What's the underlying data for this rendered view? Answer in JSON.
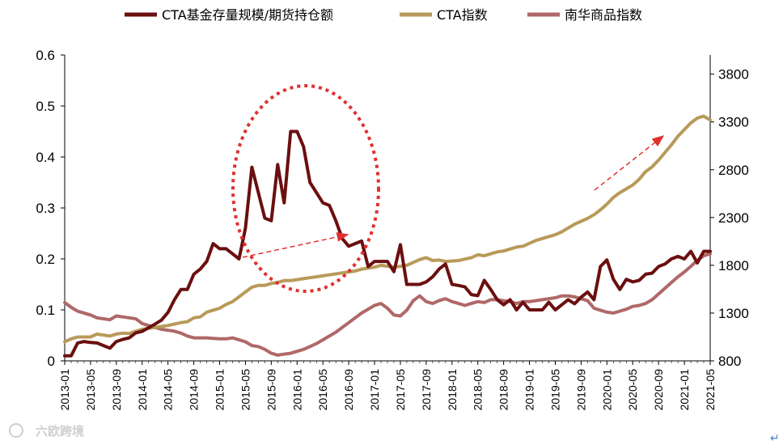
{
  "chart_data": {
    "type": "line",
    "title": "",
    "legend_position": "top",
    "left_axis": {
      "ylim": [
        0,
        0.6
      ],
      "ticks": [
        "0",
        "0.1",
        "0.2",
        "0.3",
        "0.4",
        "0.5",
        "0.6"
      ]
    },
    "right_axis": {
      "ylim": [
        800,
        4000
      ],
      "ticks": [
        "800",
        "1300",
        "1800",
        "2300",
        "2800",
        "3300",
        "3800"
      ]
    },
    "x_tick_labels": [
      "2013-01",
      "2013-05",
      "2013-09",
      "2014-01",
      "2014-05",
      "2014-09",
      "2015-01",
      "2015-05",
      "2015-09",
      "2016-01",
      "2016-05",
      "2016-09",
      "2017-01",
      "2017-05",
      "2017-09",
      "2018-01",
      "2018-05",
      "2018-09",
      "2019-01",
      "2019-05",
      "2019-09",
      "2020-01",
      "2020-05",
      "2020-09",
      "2021-01",
      "2021-05"
    ],
    "series": [
      {
        "name": "CTA基金存量规模/期货持仓额",
        "axis": "left",
        "color": "#6b0f0f",
        "points": [
          [
            0,
            0.01
          ],
          [
            1,
            0.01
          ],
          [
            2,
            0.035
          ],
          [
            3,
            0.038
          ],
          [
            4,
            0.036
          ],
          [
            5,
            0.035
          ],
          [
            6,
            0.03
          ],
          [
            7,
            0.025
          ],
          [
            8,
            0.038
          ],
          [
            9,
            0.042
          ],
          [
            10,
            0.045
          ],
          [
            11,
            0.055
          ],
          [
            12,
            0.058
          ],
          [
            13,
            0.065
          ],
          [
            14,
            0.072
          ],
          [
            15,
            0.08
          ],
          [
            16,
            0.095
          ],
          [
            17,
            0.12
          ],
          [
            18,
            0.14
          ],
          [
            19,
            0.14
          ],
          [
            20,
            0.17
          ],
          [
            21,
            0.18
          ],
          [
            22,
            0.195
          ],
          [
            23,
            0.23
          ],
          [
            24,
            0.22
          ],
          [
            25,
            0.22
          ],
          [
            26,
            0.21
          ],
          [
            27,
            0.2
          ],
          [
            28,
            0.26
          ],
          [
            29,
            0.38
          ],
          [
            30,
            0.33
          ],
          [
            31,
            0.28
          ],
          [
            32,
            0.275
          ],
          [
            33,
            0.385
          ],
          [
            34,
            0.31
          ],
          [
            35,
            0.45
          ],
          [
            36,
            0.45
          ],
          [
            37,
            0.42
          ],
          [
            38,
            0.35
          ],
          [
            39,
            0.33
          ],
          [
            40,
            0.31
          ],
          [
            41,
            0.305
          ],
          [
            42,
            0.275
          ],
          [
            43,
            0.24
          ],
          [
            44,
            0.225
          ],
          [
            45,
            0.23
          ],
          [
            46,
            0.235
          ],
          [
            47,
            0.185
          ],
          [
            48,
            0.195
          ],
          [
            49,
            0.195
          ],
          [
            50,
            0.195
          ],
          [
            51,
            0.175
          ],
          [
            52,
            0.228
          ],
          [
            53,
            0.15
          ],
          [
            54,
            0.15
          ],
          [
            55,
            0.15
          ],
          [
            56,
            0.155
          ],
          [
            57,
            0.165
          ],
          [
            58,
            0.18
          ],
          [
            59,
            0.19
          ],
          [
            60,
            0.15
          ],
          [
            61,
            0.148
          ],
          [
            62,
            0.145
          ],
          [
            63,
            0.13
          ],
          [
            64,
            0.128
          ],
          [
            65,
            0.158
          ],
          [
            66,
            0.14
          ],
          [
            67,
            0.12
          ],
          [
            68,
            0.11
          ],
          [
            69,
            0.12
          ],
          [
            70,
            0.1
          ],
          [
            71,
            0.115
          ],
          [
            72,
            0.1
          ],
          [
            73,
            0.1
          ],
          [
            74,
            0.1
          ],
          [
            75,
            0.115
          ],
          [
            76,
            0.1
          ],
          [
            77,
            0.11
          ],
          [
            78,
            0.12
          ],
          [
            79,
            0.112
          ],
          [
            80,
            0.125
          ],
          [
            81,
            0.135
          ],
          [
            82,
            0.12
          ],
          [
            83,
            0.185
          ],
          [
            84,
            0.198
          ],
          [
            85,
            0.16
          ],
          [
            86,
            0.14
          ],
          [
            87,
            0.16
          ],
          [
            88,
            0.155
          ],
          [
            89,
            0.158
          ],
          [
            90,
            0.17
          ],
          [
            91,
            0.172
          ],
          [
            92,
            0.185
          ],
          [
            93,
            0.19
          ],
          [
            94,
            0.2
          ],
          [
            95,
            0.205
          ],
          [
            96,
            0.2
          ],
          [
            97,
            0.215
          ],
          [
            98,
            0.192
          ],
          [
            99,
            0.215
          ],
          [
            100,
            0.215
          ]
        ]
      },
      {
        "name": "CTA指数",
        "axis": "right",
        "color": "#b89a5a",
        "points": [
          [
            0,
            1000
          ],
          [
            1,
            1030
          ],
          [
            2,
            1050
          ],
          [
            3,
            1050
          ],
          [
            4,
            1050
          ],
          [
            5,
            1080
          ],
          [
            6,
            1070
          ],
          [
            7,
            1060
          ],
          [
            8,
            1080
          ],
          [
            9,
            1090
          ],
          [
            10,
            1085
          ],
          [
            11,
            1110
          ],
          [
            12,
            1130
          ],
          [
            13,
            1140
          ],
          [
            14,
            1150
          ],
          [
            15,
            1160
          ],
          [
            16,
            1170
          ],
          [
            17,
            1185
          ],
          [
            18,
            1200
          ],
          [
            19,
            1210
          ],
          [
            20,
            1250
          ],
          [
            21,
            1260
          ],
          [
            22,
            1310
          ],
          [
            23,
            1330
          ],
          [
            24,
            1350
          ],
          [
            25,
            1390
          ],
          [
            26,
            1420
          ],
          [
            27,
            1470
          ],
          [
            28,
            1520
          ],
          [
            29,
            1570
          ],
          [
            30,
            1590
          ],
          [
            31,
            1590
          ],
          [
            32,
            1610
          ],
          [
            33,
            1620
          ],
          [
            34,
            1640
          ],
          [
            35,
            1640
          ],
          [
            36,
            1650
          ],
          [
            37,
            1660
          ],
          [
            38,
            1670
          ],
          [
            39,
            1680
          ],
          [
            40,
            1690
          ],
          [
            41,
            1700
          ],
          [
            42,
            1710
          ],
          [
            43,
            1720
          ],
          [
            44,
            1730
          ],
          [
            45,
            1740
          ],
          [
            46,
            1760
          ],
          [
            47,
            1770
          ],
          [
            48,
            1780
          ],
          [
            49,
            1800
          ],
          [
            50,
            1790
          ],
          [
            51,
            1780
          ],
          [
            52,
            1790
          ],
          [
            53,
            1800
          ],
          [
            54,
            1830
          ],
          [
            55,
            1860
          ],
          [
            56,
            1880
          ],
          [
            57,
            1850
          ],
          [
            58,
            1855
          ],
          [
            59,
            1840
          ],
          [
            60,
            1845
          ],
          [
            61,
            1850
          ],
          [
            62,
            1865
          ],
          [
            63,
            1880
          ],
          [
            64,
            1910
          ],
          [
            65,
            1900
          ],
          [
            66,
            1920
          ],
          [
            67,
            1940
          ],
          [
            68,
            1950
          ],
          [
            69,
            1970
          ],
          [
            70,
            1990
          ],
          [
            71,
            2000
          ],
          [
            72,
            2030
          ],
          [
            73,
            2060
          ],
          [
            74,
            2080
          ],
          [
            75,
            2100
          ],
          [
            76,
            2120
          ],
          [
            77,
            2150
          ],
          [
            78,
            2190
          ],
          [
            79,
            2230
          ],
          [
            80,
            2260
          ],
          [
            81,
            2290
          ],
          [
            82,
            2330
          ],
          [
            83,
            2380
          ],
          [
            84,
            2440
          ],
          [
            85,
            2510
          ],
          [
            86,
            2560
          ],
          [
            87,
            2600
          ],
          [
            88,
            2640
          ],
          [
            89,
            2700
          ],
          [
            90,
            2780
          ],
          [
            91,
            2830
          ],
          [
            92,
            2900
          ],
          [
            93,
            2980
          ],
          [
            94,
            3060
          ],
          [
            95,
            3150
          ],
          [
            96,
            3220
          ],
          [
            97,
            3290
          ],
          [
            98,
            3340
          ],
          [
            99,
            3360
          ],
          [
            100,
            3320
          ]
        ]
      },
      {
        "name": "南华商品指数",
        "axis": "right",
        "color": "#b06868",
        "points": [
          [
            0,
            1410
          ],
          [
            1,
            1360
          ],
          [
            2,
            1320
          ],
          [
            3,
            1300
          ],
          [
            4,
            1280
          ],
          [
            5,
            1250
          ],
          [
            6,
            1240
          ],
          [
            7,
            1230
          ],
          [
            8,
            1270
          ],
          [
            9,
            1260
          ],
          [
            10,
            1250
          ],
          [
            11,
            1240
          ],
          [
            12,
            1190
          ],
          [
            13,
            1170
          ],
          [
            14,
            1150
          ],
          [
            15,
            1130
          ],
          [
            16,
            1120
          ],
          [
            17,
            1110
          ],
          [
            18,
            1090
          ],
          [
            19,
            1060
          ],
          [
            20,
            1040
          ],
          [
            21,
            1040
          ],
          [
            22,
            1040
          ],
          [
            23,
            1035
          ],
          [
            24,
            1030
          ],
          [
            25,
            1030
          ],
          [
            26,
            1040
          ],
          [
            27,
            1020
          ],
          [
            28,
            1000
          ],
          [
            29,
            960
          ],
          [
            30,
            950
          ],
          [
            31,
            920
          ],
          [
            32,
            880
          ],
          [
            33,
            860
          ],
          [
            34,
            870
          ],
          [
            35,
            880
          ],
          [
            36,
            900
          ],
          [
            37,
            920
          ],
          [
            38,
            950
          ],
          [
            39,
            980
          ],
          [
            40,
            1020
          ],
          [
            41,
            1060
          ],
          [
            42,
            1100
          ],
          [
            43,
            1150
          ],
          [
            44,
            1200
          ],
          [
            45,
            1250
          ],
          [
            46,
            1300
          ],
          [
            47,
            1340
          ],
          [
            48,
            1380
          ],
          [
            49,
            1400
          ],
          [
            50,
            1350
          ],
          [
            51,
            1280
          ],
          [
            52,
            1270
          ],
          [
            53,
            1330
          ],
          [
            54,
            1430
          ],
          [
            55,
            1480
          ],
          [
            56,
            1420
          ],
          [
            57,
            1400
          ],
          [
            58,
            1430
          ],
          [
            59,
            1450
          ],
          [
            60,
            1420
          ],
          [
            61,
            1400
          ],
          [
            62,
            1380
          ],
          [
            63,
            1400
          ],
          [
            64,
            1420
          ],
          [
            65,
            1410
          ],
          [
            66,
            1440
          ],
          [
            67,
            1440
          ],
          [
            68,
            1430
          ],
          [
            69,
            1420
          ],
          [
            70,
            1400
          ],
          [
            71,
            1420
          ],
          [
            72,
            1420
          ],
          [
            73,
            1430
          ],
          [
            74,
            1440
          ],
          [
            75,
            1450
          ],
          [
            76,
            1460
          ],
          [
            77,
            1480
          ],
          [
            78,
            1480
          ],
          [
            79,
            1470
          ],
          [
            80,
            1450
          ],
          [
            81,
            1430
          ],
          [
            82,
            1350
          ],
          [
            83,
            1330
          ],
          [
            84,
            1310
          ],
          [
            85,
            1300
          ],
          [
            86,
            1320
          ],
          [
            87,
            1340
          ],
          [
            88,
            1370
          ],
          [
            89,
            1380
          ],
          [
            90,
            1400
          ],
          [
            91,
            1440
          ],
          [
            92,
            1500
          ],
          [
            93,
            1560
          ],
          [
            94,
            1620
          ],
          [
            95,
            1680
          ],
          [
            96,
            1730
          ],
          [
            97,
            1790
          ],
          [
            98,
            1850
          ],
          [
            99,
            1900
          ],
          [
            100,
            1920
          ]
        ]
      }
    ],
    "x_range": [
      0,
      100
    ],
    "annotations": {
      "ellipse_around": "2015-05 to 2016-09 peak",
      "arrows": [
        "rising CTA index 2015-2016",
        "rising CTA index 2020-2021"
      ]
    }
  },
  "watermark": "六欧跨境",
  "corner_mark": "↵"
}
